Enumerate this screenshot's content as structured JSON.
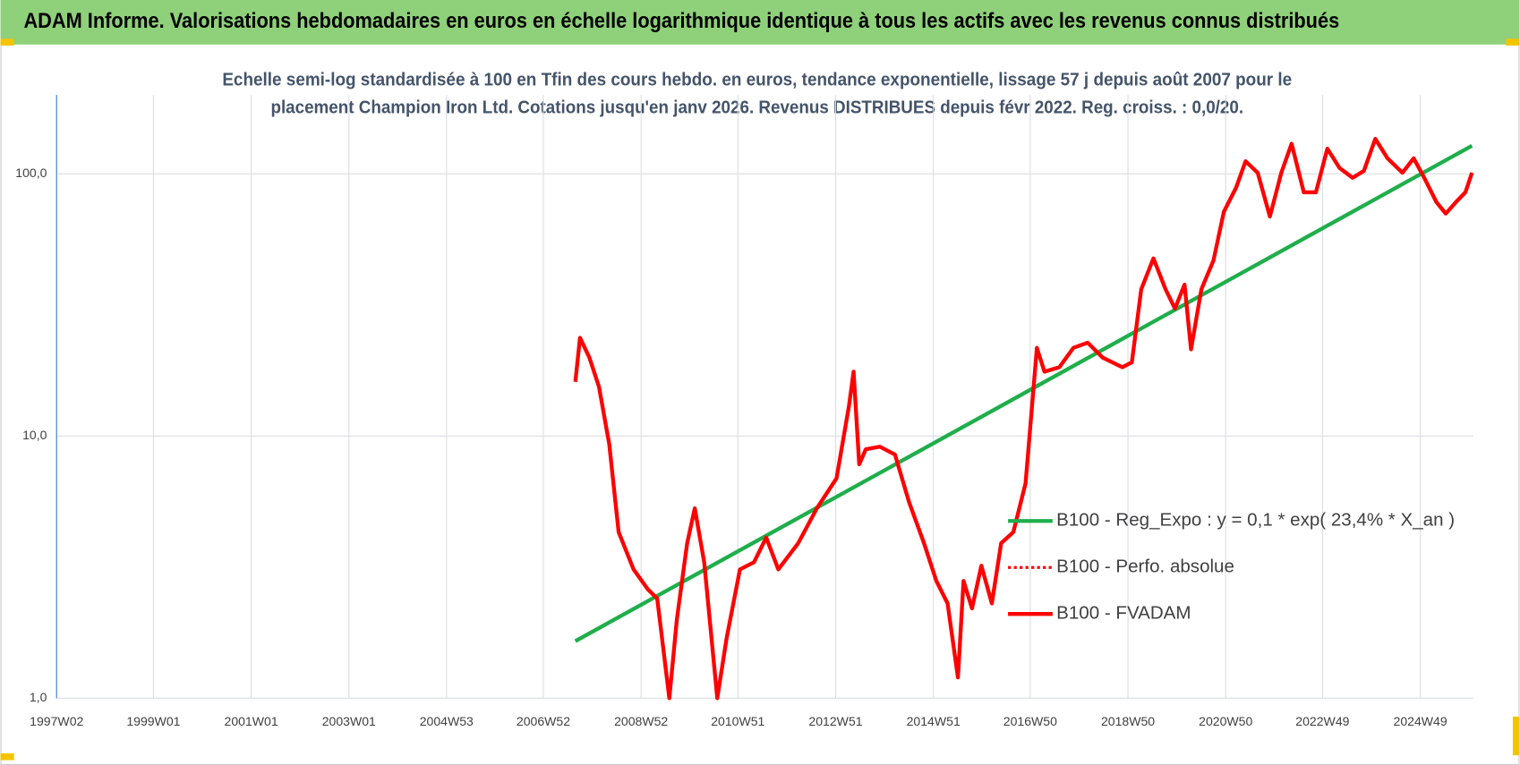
{
  "chart_data": {
    "type": "line",
    "title": "ADAM Informe. Valorisations hebdomadaires en euros en échelle logarithmique identique à tous les actifs avec les revenus connus distribués",
    "subtitle": [
      "Echelle semi-log standardisée à 100 en Tfin des cours hebdo. en euros, tendance exponentielle, lissage 57 j depuis août 2007 pour le",
      "placement Champion Iron Ltd. Cotations jusqu'en janv 2026. Revenus DISTRIBUES depuis févr 2022. Reg. croiss. : 0,0/20."
    ],
    "log_scale": true,
    "grid": true,
    "xlim": [
      "1997W02",
      "2026W01"
    ],
    "xticks": [
      "1997W02",
      "1999W01",
      "2001W01",
      "2003W01",
      "2004W53",
      "2006W52",
      "2008W52",
      "2010W51",
      "2012W51",
      "2014W51",
      "2016W50",
      "2018W50",
      "2020W50",
      "2022W49",
      "2024W49"
    ],
    "ylim": [
      1,
      200
    ],
    "yticks": [
      {
        "value": 1,
        "label": "1,0"
      },
      {
        "value": 10,
        "label": "10,0"
      },
      {
        "value": 100,
        "label": "100,0"
      }
    ],
    "series": [
      {
        "name": "B100 - Reg_Expo : y = 0,1 * exp( 23,4% *  X_an )",
        "color": "#1fae4b",
        "style": "solid",
        "x": [
          "2007W34",
          "2025W52"
        ],
        "values": [
          1.65,
          128
        ]
      },
      {
        "name": "B100 - Perfo. absolue",
        "color": "#ff0000",
        "style": "dotted"
      },
      {
        "name": "B100 - FVADAM",
        "color": "#ff0000",
        "style": "solid",
        "x": [
          "2007W34",
          "2007W39",
          "2007W49",
          "2008W07",
          "2008W18",
          "2008W28",
          "2008W44",
          "2009W07",
          "2009W17",
          "2009W30",
          "2009W38",
          "2009W49",
          "2010W05",
          "2010W15",
          "2010W29",
          "2010W39",
          "2011W01",
          "2011W16",
          "2011W29",
          "2011W42",
          "2012W11",
          "2012W31",
          "2012W52",
          "2013W13",
          "2013W18",
          "2013W24",
          "2013W31",
          "2013W46",
          "2014W10",
          "2014W25",
          "2014W41",
          "2015W02",
          "2015W14",
          "2015W25",
          "2015W31",
          "2015W40",
          "2015W50",
          "2016W09",
          "2016W19",
          "2016W32",
          "2016W45",
          "2017W05",
          "2017W13",
          "2017W29",
          "2017W44",
          "2018W07",
          "2018W23",
          "2018W44",
          "2019W02",
          "2019W12",
          "2019W25",
          "2019W38",
          "2019W48",
          "2020W06",
          "2020W13",
          "2020W24",
          "2020W37",
          "2020W48",
          "2021W09",
          "2021W19",
          "2021W32",
          "2021W45",
          "2022W05",
          "2022W16",
          "2022W29",
          "2022W42",
          "2023W02",
          "2023W15",
          "2023W29",
          "2023W41",
          "2024W01",
          "2024W14",
          "2024W30",
          "2024W42",
          "2025W01",
          "2025W14",
          "2025W24",
          "2025W35",
          "2025W45",
          "2025W52"
        ],
        "values": [
          16.1,
          23.7,
          19.9,
          15.4,
          9.3,
          4.3,
          3.1,
          2.6,
          2.4,
          1.0,
          2.0,
          3.9,
          5.3,
          3.3,
          1.0,
          1.7,
          3.1,
          3.3,
          4.1,
          3.1,
          3.9,
          5.3,
          6.9,
          13.0,
          17.6,
          7.8,
          8.9,
          9.1,
          8.5,
          5.6,
          3.9,
          2.8,
          2.3,
          1.2,
          2.8,
          2.2,
          3.2,
          2.3,
          3.9,
          4.3,
          6.6,
          21.7,
          17.6,
          18.3,
          21.7,
          22.7,
          19.9,
          18.3,
          19.1,
          36.3,
          47.6,
          36.3,
          30.6,
          37.8,
          21.4,
          36.3,
          46.8,
          71.7,
          88.7,
          111.7,
          100.9,
          68.7,
          100.9,
          130.3,
          85.0,
          85.0,
          124.8,
          105.2,
          96.6,
          102.6,
          135.9,
          114.6,
          100.9,
          114.6,
          96.6,
          78.1,
          70.5,
          78.1,
          85.0,
          100.9
        ]
      }
    ]
  }
}
